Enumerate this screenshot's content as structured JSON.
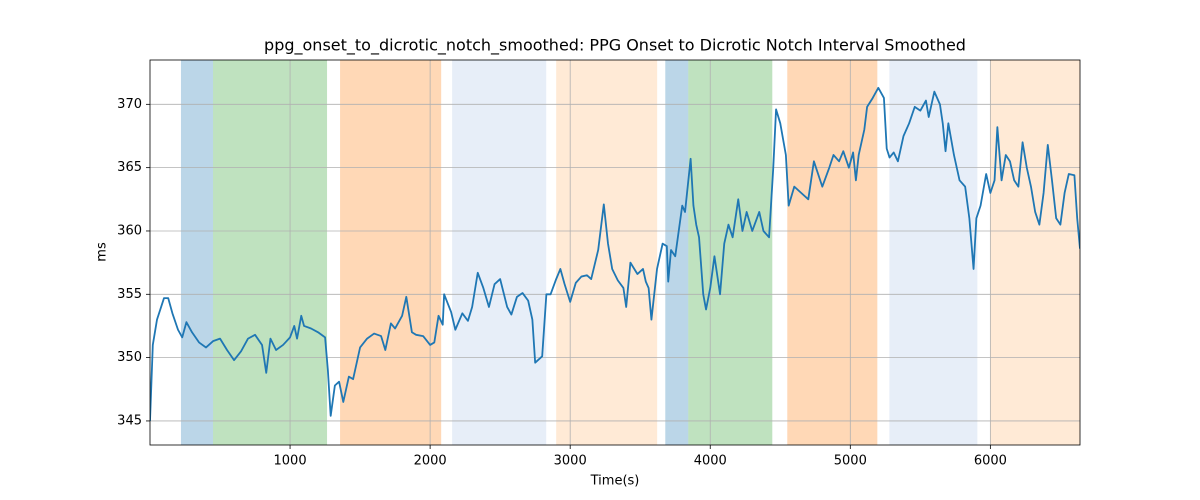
{
  "chart_data": {
    "type": "line",
    "title": "ppg_onset_to_dicrotic_notch_smoothed: PPG Onset to Dicrotic Notch Interval Smoothed",
    "xlabel": "Time(s)",
    "ylabel": "ms",
    "xlim": [
      0,
      6640
    ],
    "ylim": [
      343.1,
      373.5
    ],
    "xticks": [
      1000,
      2000,
      3000,
      4000,
      5000,
      6000
    ],
    "yticks": [
      345,
      350,
      355,
      360,
      365,
      370
    ],
    "grid": true,
    "color": "#1f77b4",
    "spans": [
      {
        "start": 221,
        "end": 450,
        "color": "#1f77b4"
      },
      {
        "start": 450,
        "end": 1264,
        "color": "#2ca02c"
      },
      {
        "start": 1357,
        "end": 2079,
        "color": "#ff7f0e"
      },
      {
        "start": 2157,
        "end": 2829,
        "color": "#aec7e8"
      },
      {
        "start": 2900,
        "end": 3621,
        "color": "#ffbb78"
      },
      {
        "start": 3679,
        "end": 3843,
        "color": "#1f77b4"
      },
      {
        "start": 3843,
        "end": 4443,
        "color": "#2ca02c"
      },
      {
        "start": 4550,
        "end": 5193,
        "color": "#ff7f0e"
      },
      {
        "start": 5279,
        "end": 5907,
        "color": "#aec7e8"
      },
      {
        "start": 6000,
        "end": 6640,
        "color": "#ffbb78"
      }
    ],
    "x": [
      0,
      20,
      50,
      100,
      130,
      160,
      200,
      230,
      260,
      300,
      350,
      400,
      450,
      500,
      550,
      600,
      650,
      700,
      750,
      800,
      830,
      860,
      900,
      950,
      1000,
      1030,
      1050,
      1080,
      1100,
      1150,
      1200,
      1250,
      1270,
      1290,
      1320,
      1350,
      1380,
      1420,
      1450,
      1500,
      1550,
      1600,
      1650,
      1680,
      1720,
      1750,
      1800,
      1830,
      1870,
      1900,
      1950,
      2000,
      2030,
      2060,
      2090,
      2100,
      2150,
      2180,
      2230,
      2270,
      2300,
      2340,
      2380,
      2420,
      2460,
      2500,
      2550,
      2580,
      2620,
      2660,
      2700,
      2730,
      2750,
      2800,
      2830,
      2860,
      2900,
      2930,
      2960,
      3000,
      3040,
      3080,
      3120,
      3150,
      3200,
      3240,
      3270,
      3300,
      3340,
      3380,
      3400,
      3430,
      3480,
      3520,
      3540,
      3560,
      3580,
      3620,
      3660,
      3690,
      3700,
      3720,
      3750,
      3800,
      3820,
      3860,
      3880,
      3900,
      3920,
      3950,
      3970,
      4000,
      4030,
      4070,
      4100,
      4130,
      4160,
      4200,
      4230,
      4260,
      4300,
      4350,
      4380,
      4420,
      4450,
      4470,
      4500,
      4540,
      4560,
      4600,
      4650,
      4700,
      4740,
      4800,
      4850,
      4880,
      4920,
      4950,
      4990,
      5020,
      5040,
      5060,
      5100,
      5120,
      5160,
      5200,
      5240,
      5260,
      5280,
      5310,
      5340,
      5380,
      5420,
      5460,
      5500,
      5540,
      5560,
      5600,
      5640,
      5660,
      5680,
      5700,
      5740,
      5780,
      5820,
      5850,
      5880,
      5900,
      5930,
      5970,
      6000,
      6030,
      6050,
      6080,
      6110,
      6140,
      6170,
      6200,
      6230,
      6260,
      6290,
      6320,
      6350,
      6380,
      6410,
      6440,
      6470,
      6500,
      6530,
      6560,
      6600,
      6620,
      6640
    ],
    "values": [
      345,
      351,
      353,
      354.7,
      354.7,
      353.5,
      352.2,
      351.6,
      352.8,
      352,
      351.2,
      350.8,
      351.3,
      351.5,
      350.6,
      349.8,
      350.5,
      351.5,
      351.8,
      351,
      348.8,
      351.5,
      350.6,
      351,
      351.6,
      352.5,
      351.5,
      353.3,
      352.5,
      352.3,
      352,
      351.6,
      349,
      345.4,
      347.8,
      348.1,
      346.5,
      348.5,
      348.3,
      350.8,
      351.5,
      351.9,
      351.7,
      350.6,
      352.7,
      352.3,
      353.3,
      354.8,
      352,
      351.8,
      351.7,
      351,
      351.2,
      353.3,
      352.6,
      355,
      353.6,
      352.2,
      353.5,
      352.9,
      354,
      356.7,
      355.5,
      354,
      355.8,
      356.2,
      354,
      353.4,
      354.8,
      355.1,
      354.5,
      353,
      349.6,
      350.1,
      355,
      355,
      356.2,
      357,
      355.8,
      354.4,
      355.9,
      356.4,
      356.5,
      356.2,
      358.5,
      362.1,
      359,
      357,
      356.1,
      355.5,
      354,
      357.5,
      356.6,
      357,
      356,
      355.5,
      353,
      357,
      359,
      358.8,
      356,
      358.5,
      358,
      362,
      361.5,
      365.7,
      362,
      360.5,
      359.5,
      355,
      353.8,
      355.5,
      358,
      355,
      359,
      360.5,
      359.5,
      362.5,
      360,
      361.5,
      360,
      361.5,
      360,
      359.5,
      365,
      369.6,
      368.5,
      366,
      362,
      363.5,
      363,
      362.5,
      365.5,
      363.5,
      365,
      366,
      365.5,
      366.3,
      365,
      366.2,
      364,
      366,
      368,
      369.8,
      370.5,
      371.3,
      370.5,
      366.5,
      365.8,
      366.2,
      365.5,
      367.5,
      368.5,
      369.8,
      369.5,
      370.3,
      369,
      371,
      370,
      368.5,
      366.3,
      368.5,
      366,
      364,
      363.5,
      361,
      357,
      361,
      362,
      364.5,
      363,
      364,
      368.2,
      364,
      366,
      365.5,
      364,
      363.5,
      367,
      365,
      363.5,
      361.5,
      360.5,
      363,
      366.8,
      364,
      361,
      360.5,
      363,
      364.5,
      364.4,
      361,
      358.6
    ]
  }
}
